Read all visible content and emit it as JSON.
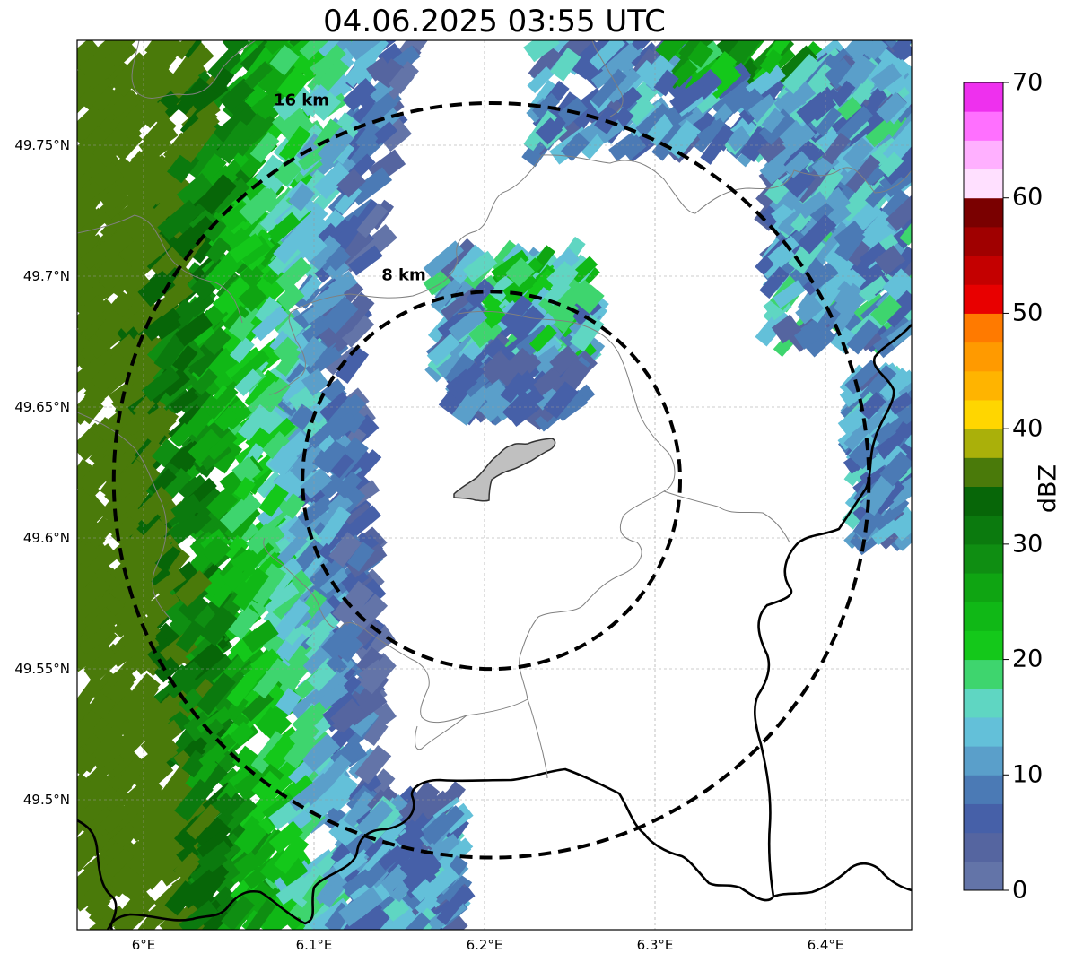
{
  "title": "04.06.2025 03:55 UTC",
  "map": {
    "center": {
      "lon": 6.204,
      "lat": 49.622
    },
    "lon_range": [
      5.96,
      6.45
    ],
    "lat_range": [
      49.45,
      49.79
    ],
    "lat_ticks": [
      {
        "value": 49.75,
        "label": "49.75°N"
      },
      {
        "value": 49.7,
        "label": "49.7°N"
      },
      {
        "value": 49.65,
        "label": "49.65°N"
      },
      {
        "value": 49.6,
        "label": "49.6°N"
      },
      {
        "value": 49.55,
        "label": "49.55°N"
      },
      {
        "value": 49.5,
        "label": "49.5°N"
      }
    ],
    "lon_ticks": [
      {
        "value": 6.0,
        "label": "6°E"
      },
      {
        "value": 6.1,
        "label": "6.1°E"
      },
      {
        "value": 6.2,
        "label": "6.2°E"
      },
      {
        "value": 6.3,
        "label": "6.3°E"
      },
      {
        "value": 6.4,
        "label": "6.4°E"
      }
    ],
    "range_rings": [
      {
        "radius_km": 8,
        "label": "8 km"
      },
      {
        "radius_km": 16,
        "label": "16 km"
      }
    ],
    "gridlines": true,
    "city_outline_color": "#c0c0c0"
  },
  "colorbar": {
    "label": "dBZ",
    "min": 0,
    "max": 70,
    "ticks": [
      "0",
      "10",
      "20",
      "30",
      "40",
      "50",
      "60",
      "70"
    ],
    "colors": [
      "#6374a8",
      "#5565a0",
      "#4660a8",
      "#4b7ab5",
      "#5a9fca",
      "#63c0d9",
      "#5fd6c2",
      "#3ed56e",
      "#14c81a",
      "#10b816",
      "#0fa512",
      "#0f8e12",
      "#0b7a0e",
      "#076608",
      "#4a7a0a",
      "#aab00a",
      "#ffd600",
      "#ffb400",
      "#ff9a00",
      "#ff7a00",
      "#e80000",
      "#c40000",
      "#a00000",
      "#7a0000",
      "#ffe0ff",
      "#ffb0ff",
      "#ff70ff",
      "#ee30ee"
    ]
  }
}
